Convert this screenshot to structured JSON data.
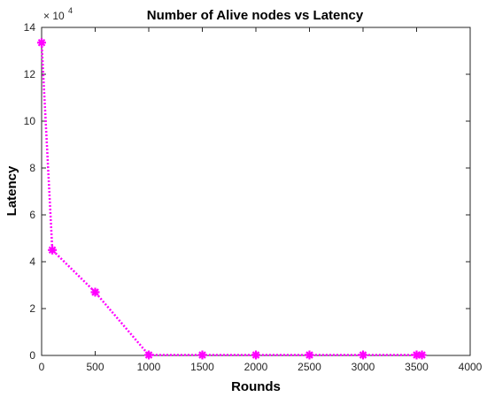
{
  "chart_data": {
    "type": "line",
    "title": "Number of Alive nodes vs Latency",
    "xlabel": "Rounds",
    "ylabel": "Latency",
    "y_exponent_base": "× 10",
    "y_exponent_power": "4",
    "xlim": [
      0,
      4000
    ],
    "ylim": [
      0,
      14
    ],
    "x_ticks": [
      0,
      500,
      1000,
      1500,
      2000,
      2500,
      3000,
      3500,
      4000
    ],
    "y_ticks": [
      0,
      2,
      4,
      6,
      8,
      10,
      12,
      14
    ],
    "grid": false,
    "legend": "none",
    "series": [
      {
        "color": "#ff00ff",
        "line_style": "dotted",
        "marker": "asterisk",
        "x": [
          0,
          100,
          500,
          1000,
          1500,
          2000,
          2500,
          3000,
          3500,
          3550
        ],
        "y": [
          13.35,
          4.5,
          2.7,
          0.02,
          0.02,
          0.02,
          0.02,
          0.02,
          0.02,
          0.02
        ]
      }
    ]
  }
}
